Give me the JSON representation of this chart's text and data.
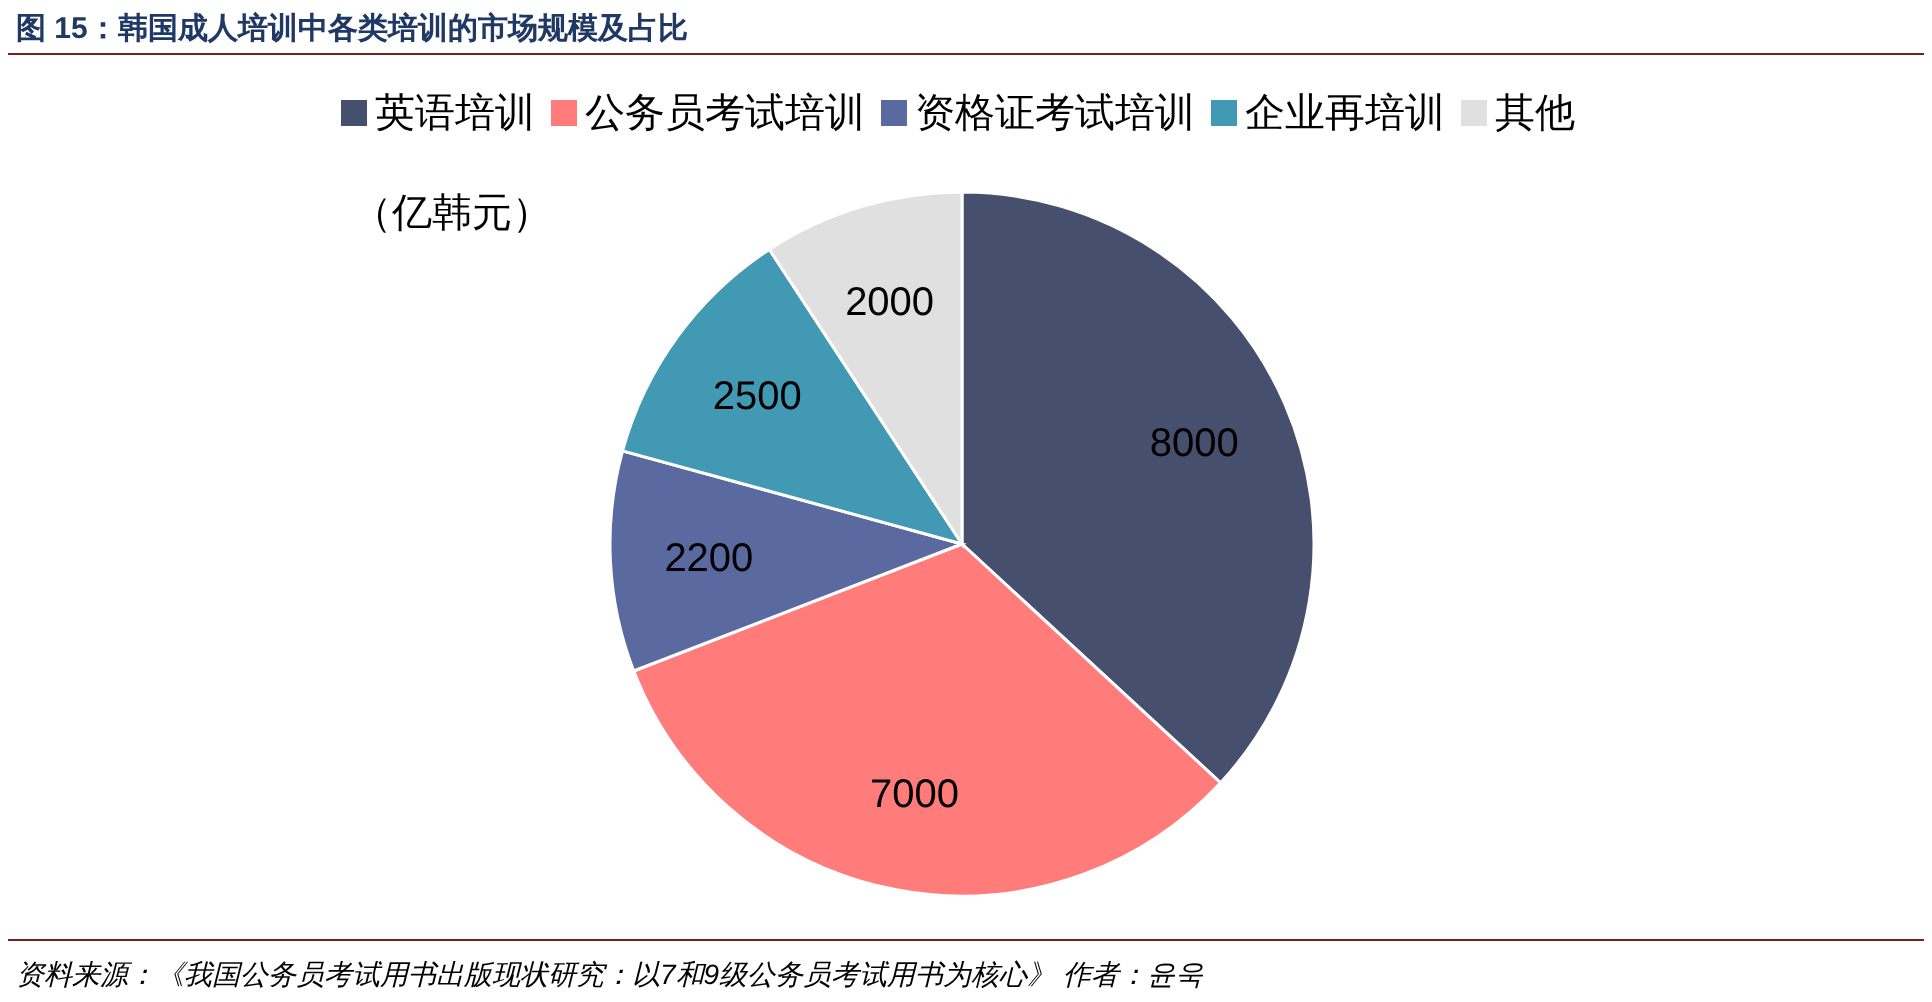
{
  "chart_data": {
    "type": "pie",
    "title": "图 15：韩国成人培训中各类培训的市场规模及占比",
    "categories": [
      "英语培训",
      "公务员考试培训",
      "资格证考试培训",
      "企业再培训",
      "其他"
    ],
    "values": [
      8000,
      7000,
      2200,
      2500,
      2000
    ],
    "colors": [
      "#464f6e",
      "#ff7c7a",
      "#5a6aa0",
      "#4299b4",
      "#e0e0e0"
    ],
    "data_labels": true,
    "legend": "top",
    "annotations": [
      "（亿韩元）",
      "资料来源：《我国公务员考试用书出版现状研究：以7和9级公务员考试用书为核心》 作者：윤욱"
    ]
  }
}
